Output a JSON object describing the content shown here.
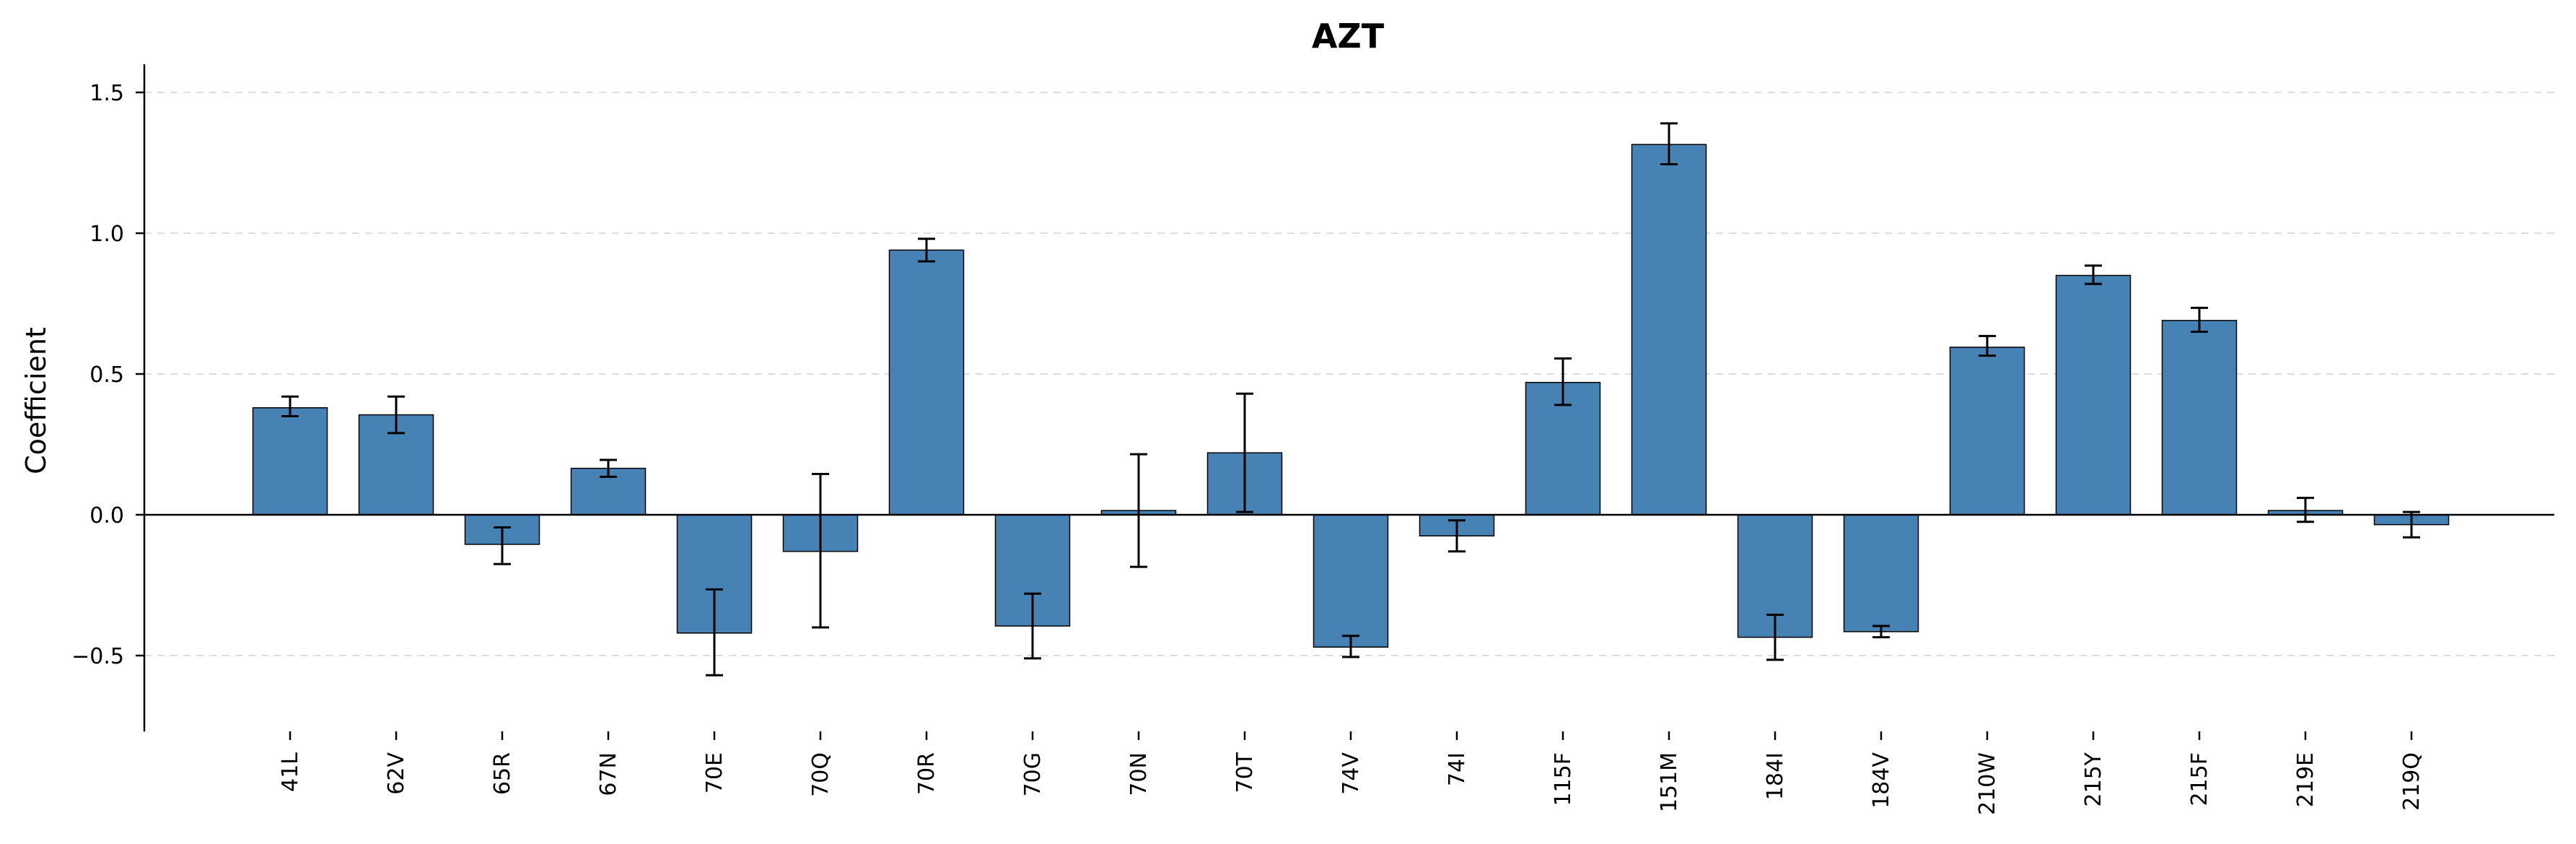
{
  "chart_data": {
    "type": "bar",
    "title": "AZT",
    "xlabel": "",
    "ylabel": "Coefficient",
    "ylim": [
      -0.77,
      1.6
    ],
    "yticks": [
      -0.5,
      0.0,
      0.5,
      1.0,
      1.5
    ],
    "ytick_labels": [
      "−0.5",
      "0.0",
      "0.5",
      "1.0",
      "1.5"
    ],
    "grid": "horizontal dashed",
    "categories": [
      "41L",
      "62V",
      "65R",
      "67N",
      "70E",
      "70Q",
      "70R",
      "70G",
      "70N",
      "70T",
      "74V",
      "74I",
      "115F",
      "151M",
      "184I",
      "184V",
      "210W",
      "215Y",
      "215F",
      "219E",
      "219Q"
    ],
    "values": [
      0.38,
      0.355,
      -0.105,
      0.165,
      -0.42,
      -0.13,
      0.94,
      -0.395,
      0.015,
      0.22,
      -0.47,
      -0.075,
      0.47,
      1.315,
      -0.435,
      -0.415,
      0.595,
      0.85,
      0.69,
      0.015,
      -0.035
    ],
    "error_low": [
      0.35,
      0.29,
      -0.175,
      0.135,
      -0.57,
      -0.4,
      0.9,
      -0.51,
      -0.185,
      0.01,
      -0.505,
      -0.13,
      0.39,
      1.245,
      -0.515,
      -0.435,
      0.565,
      0.82,
      0.65,
      -0.025,
      -0.08
    ],
    "error_high": [
      0.42,
      0.42,
      -0.045,
      0.195,
      -0.265,
      0.145,
      0.98,
      -0.28,
      0.215,
      0.43,
      -0.43,
      -0.02,
      0.555,
      1.39,
      -0.355,
      -0.395,
      0.635,
      0.885,
      0.735,
      0.06,
      0.01
    ],
    "colors": {
      "bar": "#4682b4",
      "bar_edge": "#000000",
      "error": "#000000",
      "grid": "#dddddd",
      "zero_line": "#000000"
    }
  }
}
